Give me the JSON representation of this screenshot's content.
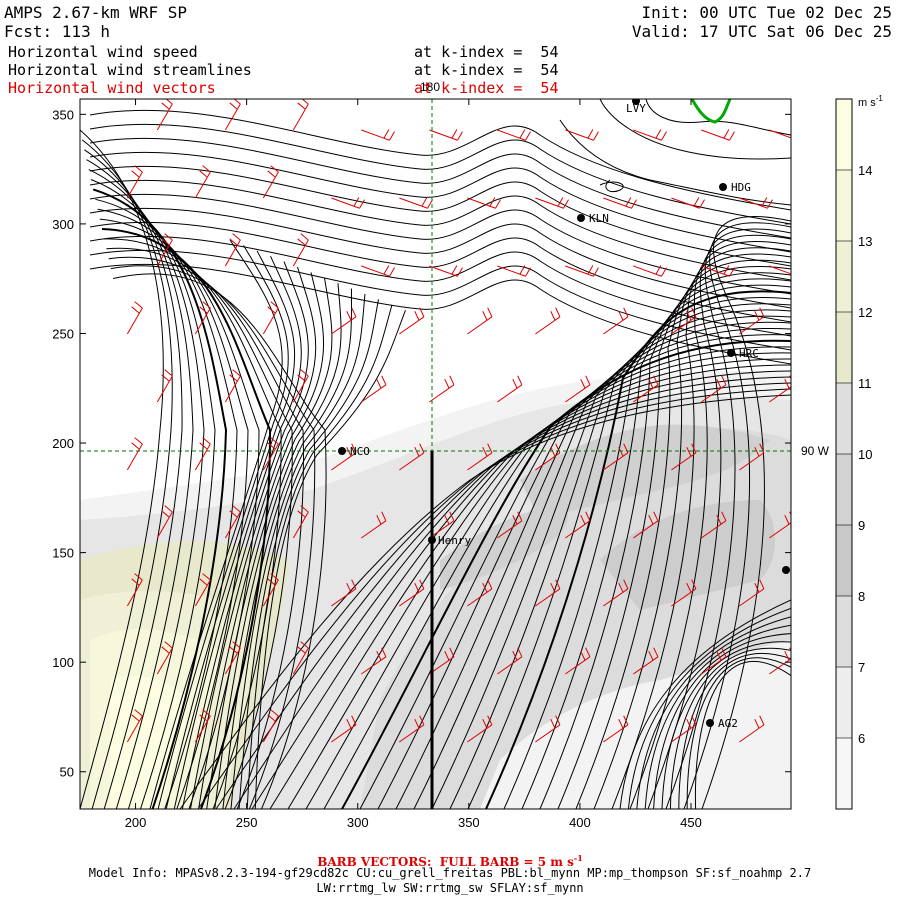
{
  "header": {
    "model_line": "AMPS 2.67-km WRF SP",
    "fcst_line": "Fcst: 113 h",
    "init_line": "Init: 00 UTC Tue 02 Dec 25",
    "valid_line": "Valid: 17 UTC Sat 06 Dec 25",
    "fields": [
      {
        "name": "Horizontal wind speed",
        "level": "at k-index =  54",
        "color": "#000000"
      },
      {
        "name": "Horizontal wind streamlines",
        "level": "at k-index =  54",
        "color": "#000000"
      },
      {
        "name": "Horizontal wind vectors",
        "level": "at k-index =  54",
        "color": "#e00000"
      }
    ]
  },
  "map": {
    "x_ticks": [
      "200",
      "250",
      "300",
      "350",
      "400",
      "450"
    ],
    "y_ticks": [
      "50",
      "100",
      "150",
      "200",
      "250",
      "300",
      "350"
    ],
    "lon_label_top": "180",
    "lon_label_right": "90 W",
    "stations": [
      {
        "id": "LVY",
        "label": "LVY"
      },
      {
        "id": "HDG",
        "label": "HDG"
      },
      {
        "id": "KLN",
        "label": "KLN"
      },
      {
        "id": "HRC",
        "label": "HRC"
      },
      {
        "id": "NCO",
        "label": "NCO"
      },
      {
        "id": "Henry",
        "label": "Henry"
      },
      {
        "id": "AG2",
        "label": "AG2"
      }
    ]
  },
  "colorbar": {
    "units": "m s",
    "units_exp": "-1",
    "labels": [
      "14",
      "13",
      "12",
      "11",
      "10",
      "9",
      "8",
      "7",
      "6"
    ],
    "colors": [
      "#fdfde2",
      "#f7f7dc",
      "#f0f0d6",
      "#e8e8cc",
      "#dedede",
      "#d2d2d2",
      "#c8c8c8",
      "#dddddd",
      "#ededed",
      "#f7f7f7"
    ]
  },
  "footer": {
    "barb_note": "BARB VECTORS:  FULL BARB = 5 m s",
    "barb_exp": "-1",
    "model_info": "Model Info: MPASv8.2.3-194-gf29cd82c CU:cu_grell_freitas PBL:bl_mynn MP:mp_thompson SF:sf_noahmp 2.7",
    "model_info2": "LW:rrtmg_lw SW:rrtmg_sw SFLAY:sf_mynn"
  }
}
